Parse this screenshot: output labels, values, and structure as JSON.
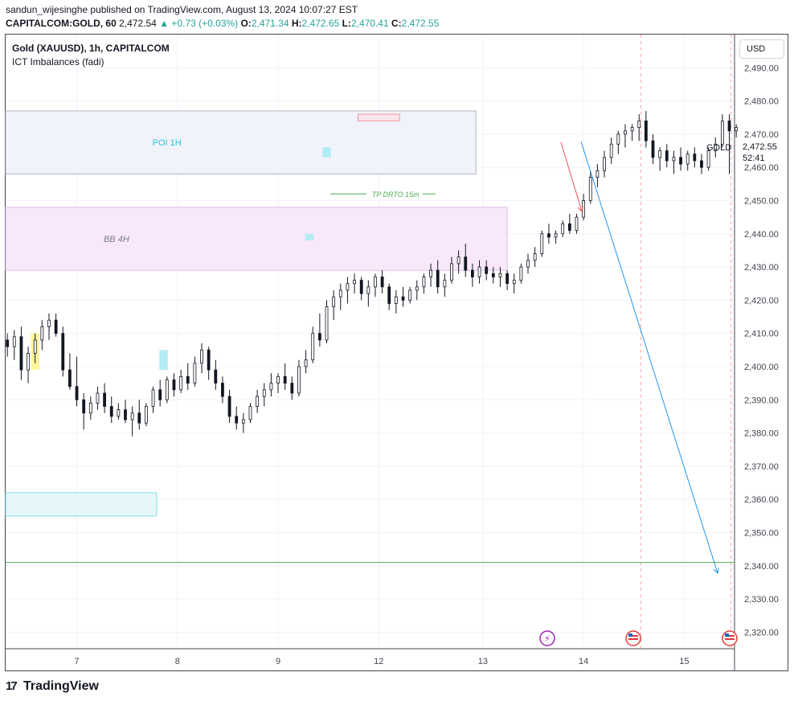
{
  "header": {
    "publisher": "sandun_wijesinghe published on TradingView.com, August 13, 2024 10:07:27 EST",
    "ticker": "CAPITALCOM:GOLD, 60",
    "last": "2,472.54",
    "change": "▲ +0.73 (+0.03%)",
    "o_label": "O:",
    "o": "2,471.34",
    "h_label": "H:",
    "h": "2,472.65",
    "l_label": "L:",
    "l": "2,470.41",
    "c_label": "C:",
    "c": "2,472.55"
  },
  "chart_title": "Gold (XAUUSD), 1h, CAPITALCOM",
  "indicator": "ICT Imbalances (fadi)",
  "currency_button": "USD",
  "price_badge": {
    "symbol": "GOLD",
    "price": "2,472.55",
    "countdown": "52:41",
    "color": "#131722"
  },
  "footer_brand": "TradingView",
  "colors": {
    "up": "#131722",
    "down": "#131722",
    "poi": "#f0f3fa",
    "bb": "#f3e5f5",
    "fvg_yellow": "#fff59d",
    "fvg_blue": "#b2ebf2",
    "target_line": "#4caf50",
    "arrow_blue": "#2196f3",
    "arrow_red": "#ef5350"
  },
  "chart_data": {
    "type": "candlestick",
    "title": "Gold (XAUUSD), 1h, CAPITALCOM",
    "ylim": [
      2315,
      2500
    ],
    "y_ticks": [
      "2,320.00",
      "2,330.00",
      "2,340.00",
      "2,350.00",
      "2,360.00",
      "2,370.00",
      "2,380.00",
      "2,390.00",
      "2,400.00",
      "2,410.00",
      "2,420.00",
      "2,430.00",
      "2,440.00",
      "2,450.00",
      "2,460.00",
      "2,470.00",
      "2,480.00",
      "2,490.00"
    ],
    "y_tick_values": [
      2320,
      2330,
      2340,
      2350,
      2360,
      2370,
      2380,
      2390,
      2400,
      2410,
      2420,
      2430,
      2440,
      2450,
      2460,
      2470,
      2480,
      2490
    ],
    "x_ticks": [
      "7",
      "8",
      "9",
      "12",
      "13",
      "14",
      "15"
    ],
    "x_tick_index": [
      20,
      49,
      78,
      107,
      137,
      166,
      195
    ],
    "total_bars": 210,
    "grid": true,
    "candles": [
      [
        2408,
        2410,
        2403,
        2406
      ],
      [
        2406,
        2411,
        2402,
        2409
      ],
      [
        2409,
        2412,
        2396,
        2399
      ],
      [
        2399,
        2406,
        2395,
        2404
      ],
      [
        2404,
        2410,
        2401,
        2408
      ],
      [
        2408,
        2414,
        2405,
        2412
      ],
      [
        2412,
        2416,
        2408,
        2414
      ],
      [
        2414,
        2416,
        2409,
        2410
      ],
      [
        2410,
        2412,
        2397,
        2399
      ],
      [
        2399,
        2404,
        2393,
        2394
      ],
      [
        2394,
        2403,
        2388,
        2390
      ],
      [
        2390,
        2392,
        2381,
        2386
      ],
      [
        2386,
        2391,
        2384,
        2389
      ],
      [
        2389,
        2394,
        2387,
        2392
      ],
      [
        2392,
        2395,
        2386,
        2388
      ],
      [
        2388,
        2391,
        2383,
        2385
      ],
      [
        2385,
        2389,
        2384,
        2387
      ],
      [
        2387,
        2390,
        2383,
        2384
      ],
      [
        2384,
        2388,
        2379,
        2386
      ],
      [
        2386,
        2390,
        2381,
        2383
      ],
      [
        2383,
        2389,
        2382,
        2388
      ],
      [
        2388,
        2394,
        2386,
        2393
      ],
      [
        2393,
        2396,
        2388,
        2390
      ],
      [
        2390,
        2397,
        2389,
        2396
      ],
      [
        2396,
        2398,
        2391,
        2393
      ],
      [
        2393,
        2399,
        2392,
        2397
      ],
      [
        2397,
        2401,
        2393,
        2395
      ],
      [
        2395,
        2403,
        2394,
        2401
      ],
      [
        2401,
        2407,
        2398,
        2405
      ],
      [
        2405,
        2406,
        2396,
        2399
      ],
      [
        2399,
        2402,
        2393,
        2395
      ],
      [
        2395,
        2397,
        2389,
        2391
      ],
      [
        2391,
        2393,
        2383,
        2385
      ],
      [
        2385,
        2388,
        2381,
        2383
      ],
      [
        2383,
        2386,
        2380,
        2384
      ],
      [
        2384,
        2389,
        2383,
        2388
      ],
      [
        2388,
        2393,
        2386,
        2391
      ],
      [
        2391,
        2395,
        2388,
        2393
      ],
      [
        2393,
        2398,
        2391,
        2395
      ],
      [
        2395,
        2398,
        2392,
        2397
      ],
      [
        2397,
        2401,
        2393,
        2395
      ],
      [
        2395,
        2397,
        2390,
        2392
      ],
      [
        2392,
        2402,
        2391,
        2400
      ],
      [
        2400,
        2405,
        2398,
        2402
      ],
      [
        2402,
        2412,
        2401,
        2410
      ],
      [
        2410,
        2416,
        2406,
        2408
      ],
      [
        2408,
        2420,
        2407,
        2418
      ],
      [
        2418,
        2423,
        2414,
        2421
      ],
      [
        2421,
        2425,
        2417,
        2423
      ],
      [
        2423,
        2427,
        2419,
        2425
      ],
      [
        2425,
        2428,
        2422,
        2426
      ],
      [
        2426,
        2427,
        2420,
        2422
      ],
      [
        2422,
        2426,
        2418,
        2424
      ],
      [
        2424,
        2428,
        2421,
        2427
      ],
      [
        2427,
        2429,
        2422,
        2424
      ],
      [
        2424,
        2425,
        2417,
        2419
      ],
      [
        2419,
        2423,
        2416,
        2421
      ],
      [
        2421,
        2424,
        2418,
        2420
      ],
      [
        2420,
        2424,
        2419,
        2423
      ],
      [
        2423,
        2426,
        2420,
        2424
      ],
      [
        2424,
        2428,
        2422,
        2427
      ],
      [
        2427,
        2431,
        2424,
        2429
      ],
      [
        2429,
        2432,
        2422,
        2424
      ],
      [
        2424,
        2428,
        2421,
        2426
      ],
      [
        2426,
        2433,
        2425,
        2431
      ],
      [
        2431,
        2435,
        2428,
        2433
      ],
      [
        2433,
        2437,
        2427,
        2429
      ],
      [
        2429,
        2431,
        2424,
        2427
      ],
      [
        2427,
        2432,
        2425,
        2430
      ],
      [
        2430,
        2432,
        2426,
        2428
      ],
      [
        2428,
        2430,
        2425,
        2427
      ],
      [
        2427,
        2430,
        2424,
        2428
      ],
      [
        2428,
        2429,
        2423,
        2425
      ],
      [
        2425,
        2428,
        2422,
        2426
      ],
      [
        2426,
        2431,
        2425,
        2430
      ],
      [
        2430,
        2434,
        2428,
        2432
      ],
      [
        2432,
        2436,
        2430,
        2434
      ],
      [
        2434,
        2441,
        2433,
        2440
      ],
      [
        2440,
        2443,
        2437,
        2439
      ],
      [
        2439,
        2441,
        2437,
        2440
      ],
      [
        2440,
        2444,
        2439,
        2443
      ],
      [
        2443,
        2446,
        2440,
        2441
      ],
      [
        2441,
        2446,
        2440,
        2445
      ],
      [
        2445,
        2452,
        2444,
        2450
      ],
      [
        2450,
        2459,
        2449,
        2457
      ],
      [
        2457,
        2461,
        2454,
        2459
      ],
      [
        2459,
        2465,
        2457,
        2463
      ],
      [
        2463,
        2469,
        2461,
        2467
      ],
      [
        2467,
        2471,
        2464,
        2470
      ],
      [
        2470,
        2473,
        2466,
        2471
      ],
      [
        2471,
        2473,
        2468,
        2472
      ],
      [
        2472,
        2476,
        2468,
        2474
      ],
      [
        2474,
        2477,
        2466,
        2468
      ],
      [
        2468,
        2470,
        2461,
        2463
      ],
      [
        2463,
        2466,
        2459,
        2465
      ],
      [
        2465,
        2467,
        2460,
        2462
      ],
      [
        2462,
        2465,
        2458,
        2463
      ],
      [
        2463,
        2466,
        2459,
        2461
      ],
      [
        2461,
        2465,
        2459,
        2464
      ],
      [
        2464,
        2466,
        2460,
        2462
      ],
      [
        2462,
        2464,
        2458,
        2460
      ],
      [
        2460,
        2466,
        2459,
        2465
      ],
      [
        2465,
        2469,
        2463,
        2467
      ],
      [
        2467,
        2476,
        2466,
        2474
      ],
      [
        2474,
        2476,
        2458,
        2471
      ],
      [
        2471,
        2473,
        2469,
        2472
      ]
    ],
    "fvg_zones": [
      {
        "bar": 8,
        "low": 2399,
        "high": 2410,
        "color": "yellow"
      },
      {
        "bar": 45,
        "low": 2399,
        "high": 2405,
        "color": "blue"
      },
      {
        "bar": 87,
        "low": 2438,
        "high": 2440,
        "color": "blue"
      },
      {
        "bar": 92,
        "low": 2463,
        "high": 2466,
        "color": "blue"
      }
    ],
    "zones": [
      {
        "label": "POI 1H",
        "y_low": 2458,
        "y_high": 2477,
        "x_start_bar": 0,
        "x_end_bar": 135,
        "fill": "#f0f3fa",
        "stroke": "#b2b5be",
        "label_color": "#26c6da"
      },
      {
        "label": "BB 4H",
        "y_low": 2429,
        "y_high": 2448,
        "x_start_bar": 0,
        "x_end_bar": 144,
        "fill": "#f8e8fa",
        "stroke": "#e1bee7",
        "label_color": "#787b86"
      },
      {
        "label": "",
        "y_low": 2355,
        "y_high": 2362,
        "x_start_bar": 0,
        "x_end_bar": 43,
        "fill": "#e6f7fa",
        "stroke": "#80deea",
        "label_color": ""
      }
    ],
    "annotations": [
      {
        "label": "TP DRTO 15m",
        "y": 2452,
        "x_start_bar": 93,
        "x_end_bar": 121,
        "color": "#4caf50"
      }
    ],
    "target_price": 2341,
    "red_marker": {
      "y_low": 2474,
      "y_high": 2476,
      "x_start_bar": 101,
      "x_end_bar": 113
    }
  }
}
